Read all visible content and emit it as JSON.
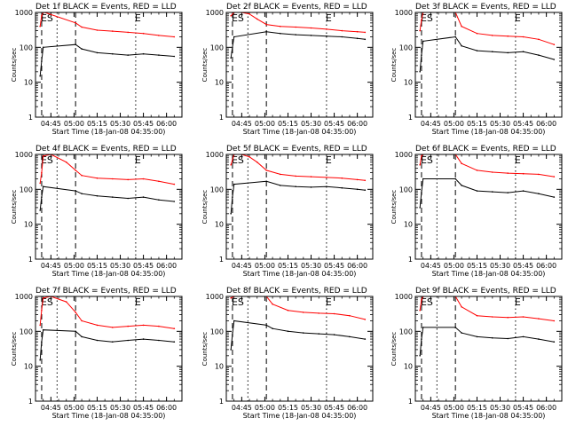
{
  "chart_data": [
    {
      "type": "line",
      "title": "Det 1f BLACK = Events, RED = LLD",
      "xlabel": "Start Time (18-Jan-08 04:35:00)",
      "ylabel": "Counts/sec",
      "yscale": "log",
      "ylim": [
        1,
        1000
      ],
      "y_ticks": [
        "1",
        "10",
        "100",
        "1000"
      ],
      "xlim": [
        "04:35",
        "06:10"
      ],
      "x_ticks": [
        "04:45",
        "05:00",
        "05:15",
        "05:30",
        "05:45",
        "06:00"
      ],
      "markers": [
        {
          "time": "04:39",
          "label": "ES",
          "style": "dashed"
        },
        {
          "time": "04:49",
          "label": "",
          "style": "dotted"
        },
        {
          "time": "05:01",
          "label": "",
          "style": "dashed"
        },
        {
          "time": "05:40",
          "label": "E",
          "style": "dotted"
        }
      ],
      "series": [
        {
          "name": "LLD",
          "color": "#ff0000",
          "x": [
            "04:38",
            "04:39",
            "04:40",
            "04:41",
            "05:01",
            "05:05",
            "05:15",
            "05:25",
            "05:35",
            "05:45",
            "05:55",
            "06:05"
          ],
          "y": [
            400,
            800,
            1000,
            1000,
            500,
            380,
            310,
            290,
            270,
            250,
            220,
            200
          ]
        },
        {
          "name": "Events",
          "color": "#000000",
          "x": [
            "04:38",
            "04:39",
            "04:40",
            "05:01",
            "05:05",
            "05:15",
            "05:25",
            "05:35",
            "05:45",
            "05:55",
            "06:05"
          ],
          "y": [
            15,
            40,
            100,
            120,
            90,
            70,
            65,
            60,
            65,
            60,
            55
          ]
        }
      ]
    },
    {
      "type": "line",
      "title": "Det 2f BLACK = Events, RED = LLD",
      "xlabel": "Start Time (18-Jan-08 04:35:00)",
      "ylabel": "Counts/sec",
      "yscale": "log",
      "ylim": [
        1,
        1000
      ],
      "y_ticks": [
        "1",
        "10",
        "100",
        "1000"
      ],
      "xlim": [
        "04:35",
        "06:10"
      ],
      "x_ticks": [
        "04:45",
        "05:00",
        "05:15",
        "05:30",
        "05:45",
        "06:00"
      ],
      "markers": [
        {
          "time": "04:39",
          "label": "ES",
          "style": "dashed"
        },
        {
          "time": "04:49",
          "label": "",
          "style": "dotted"
        },
        {
          "time": "05:01",
          "label": "",
          "style": "dashed"
        },
        {
          "time": "05:40",
          "label": "E",
          "style": "dotted"
        }
      ],
      "series": [
        {
          "name": "LLD",
          "color": "#ff0000",
          "x": [
            "04:38",
            "04:40",
            "04:45",
            "04:50",
            "04:55",
            "05:01",
            "05:10",
            "05:20",
            "05:30",
            "05:40",
            "05:50",
            "06:00",
            "06:05"
          ],
          "y": [
            800,
            1000,
            1000,
            900,
            650,
            450,
            400,
            380,
            360,
            330,
            300,
            280,
            270
          ]
        },
        {
          "name": "Events",
          "color": "#000000",
          "x": [
            "04:38",
            "04:39",
            "04:40",
            "05:01",
            "05:10",
            "05:20",
            "05:30",
            "05:40",
            "05:50",
            "06:00",
            "06:05"
          ],
          "y": [
            50,
            100,
            200,
            280,
            250,
            230,
            220,
            210,
            200,
            180,
            170
          ]
        }
      ]
    },
    {
      "type": "line",
      "title": "Det 3f BLACK = Events, RED = LLD",
      "xlabel": "Start Time (18-Jan-08 04:35:00)",
      "ylabel": "Counts/sec",
      "yscale": "log",
      "ylim": [
        1,
        1000
      ],
      "y_ticks": [
        "1",
        "10",
        "100",
        "1000"
      ],
      "xlim": [
        "04:35",
        "06:10"
      ],
      "x_ticks": [
        "04:45",
        "05:00",
        "05:15",
        "05:30",
        "05:45",
        "06:00"
      ],
      "markers": [
        {
          "time": "04:39",
          "label": "ES",
          "style": "dashed"
        },
        {
          "time": "04:49",
          "label": "",
          "style": "dotted"
        },
        {
          "time": "05:01",
          "label": "",
          "style": "dashed"
        },
        {
          "time": "05:40",
          "label": "E",
          "style": "dotted"
        }
      ],
      "series": [
        {
          "name": "LLD",
          "color": "#ff0000",
          "x": [
            "04:38",
            "04:39",
            "04:40",
            "05:01",
            "05:05",
            "05:15",
            "05:25",
            "05:35",
            "05:45",
            "05:55",
            "06:05"
          ],
          "y": [
            300,
            600,
            1000,
            1000,
            400,
            250,
            220,
            210,
            200,
            170,
            120
          ]
        },
        {
          "name": "Events",
          "color": "#000000",
          "x": [
            "04:38",
            "04:39",
            "04:40",
            "05:01",
            "05:05",
            "05:15",
            "05:25",
            "05:35",
            "05:45",
            "05:55",
            "06:05"
          ],
          "y": [
            20,
            60,
            150,
            200,
            110,
            80,
            75,
            70,
            75,
            60,
            45
          ]
        }
      ]
    },
    {
      "type": "line",
      "title": "Det 4f BLACK = Events, RED = LLD",
      "xlabel": "Start Time (18-Jan-08 04:35:00)",
      "ylabel": "Counts/sec",
      "yscale": "log",
      "ylim": [
        1,
        1000
      ],
      "y_ticks": [
        "1",
        "10",
        "100",
        "1000"
      ],
      "xlim": [
        "04:35",
        "06:10"
      ],
      "x_ticks": [
        "04:45",
        "05:00",
        "05:15",
        "05:30",
        "05:45",
        "06:00"
      ],
      "markers": [
        {
          "time": "04:39",
          "label": "ES",
          "style": "dashed"
        },
        {
          "time": "04:49",
          "label": "",
          "style": "dotted"
        },
        {
          "time": "05:01",
          "label": "",
          "style": "dashed"
        },
        {
          "time": "05:40",
          "label": "E",
          "style": "dotted"
        }
      ],
      "series": [
        {
          "name": "LLD",
          "color": "#ff0000",
          "x": [
            "04:38",
            "04:39",
            "04:40",
            "04:45",
            "04:55",
            "05:01",
            "05:05",
            "05:15",
            "05:25",
            "05:35",
            "05:45",
            "05:55",
            "06:05"
          ],
          "y": [
            150,
            300,
            900,
            1000,
            600,
            350,
            250,
            210,
            200,
            190,
            200,
            170,
            140
          ]
        },
        {
          "name": "Events",
          "color": "#000000",
          "x": [
            "04:38",
            "04:39",
            "04:40",
            "05:01",
            "05:05",
            "05:15",
            "05:25",
            "05:35",
            "05:45",
            "05:55",
            "06:05"
          ],
          "y": [
            25,
            60,
            120,
            90,
            75,
            65,
            60,
            55,
            60,
            50,
            45
          ]
        }
      ]
    },
    {
      "type": "line",
      "title": "Det 5f BLACK = Events, RED = LLD",
      "xlabel": "Start Time (18-Jan-08 04:35:00)",
      "ylabel": "Counts/sec",
      "yscale": "log",
      "ylim": [
        1,
        1000
      ],
      "y_ticks": [
        "1",
        "10",
        "100",
        "1000"
      ],
      "xlim": [
        "04:35",
        "06:10"
      ],
      "x_ticks": [
        "04:45",
        "05:00",
        "05:15",
        "05:30",
        "05:45",
        "06:00"
      ],
      "markers": [
        {
          "time": "04:39",
          "label": "ES",
          "style": "dashed"
        },
        {
          "time": "04:49",
          "label": "",
          "style": "dotted"
        },
        {
          "time": "05:01",
          "label": "",
          "style": "dashed"
        },
        {
          "time": "05:40",
          "label": "E",
          "style": "dotted"
        }
      ],
      "series": [
        {
          "name": "LLD",
          "color": "#ff0000",
          "x": [
            "04:38",
            "04:40",
            "04:45",
            "04:50",
            "04:55",
            "05:01",
            "05:10",
            "05:20",
            "05:30",
            "05:40",
            "05:50",
            "06:00",
            "06:05"
          ],
          "y": [
            500,
            1000,
            1000,
            850,
            600,
            350,
            270,
            240,
            230,
            220,
            210,
            190,
            180
          ]
        },
        {
          "name": "Events",
          "color": "#000000",
          "x": [
            "04:38",
            "04:39",
            "04:40",
            "05:01",
            "05:10",
            "05:20",
            "05:30",
            "05:40",
            "05:50",
            "06:00",
            "06:05"
          ],
          "y": [
            20,
            60,
            140,
            170,
            130,
            120,
            115,
            120,
            110,
            100,
            95
          ]
        }
      ]
    },
    {
      "type": "line",
      "title": "Det 6f BLACK = Events, RED = LLD",
      "xlabel": "Start Time (18-Jan-08 04:35:00)",
      "ylabel": "Counts/sec",
      "yscale": "log",
      "ylim": [
        1,
        1000
      ],
      "y_ticks": [
        "1",
        "10",
        "100",
        "1000"
      ],
      "xlim": [
        "04:35",
        "06:10"
      ],
      "x_ticks": [
        "04:45",
        "05:00",
        "05:15",
        "05:30",
        "05:45",
        "06:00"
      ],
      "markers": [
        {
          "time": "04:39",
          "label": "ES",
          "style": "dashed"
        },
        {
          "time": "04:49",
          "label": "",
          "style": "dotted"
        },
        {
          "time": "05:01",
          "label": "",
          "style": "dashed"
        },
        {
          "time": "05:40",
          "label": "E",
          "style": "dotted"
        }
      ],
      "series": [
        {
          "name": "LLD",
          "color": "#ff0000",
          "x": [
            "04:38",
            "04:39",
            "04:40",
            "05:01",
            "05:05",
            "05:15",
            "05:25",
            "05:35",
            "05:45",
            "05:55",
            "06:05"
          ],
          "y": [
            500,
            900,
            1000,
            1000,
            550,
            350,
            310,
            290,
            280,
            270,
            230
          ]
        },
        {
          "name": "Events",
          "color": "#000000",
          "x": [
            "04:38",
            "04:39",
            "04:40",
            "05:01",
            "05:05",
            "05:15",
            "05:25",
            "05:35",
            "05:45",
            "05:55",
            "06:05"
          ],
          "y": [
            30,
            80,
            200,
            200,
            130,
            90,
            85,
            80,
            90,
            75,
            60
          ]
        }
      ]
    },
    {
      "type": "line",
      "title": "Det 7f BLACK = Events, RED = LLD",
      "xlabel": "Start Time (18-Jan-08 04:35:00)",
      "ylabel": "Counts/sec",
      "yscale": "log",
      "ylim": [
        1,
        1000
      ],
      "y_ticks": [
        "1",
        "10",
        "100",
        "1000"
      ],
      "xlim": [
        "04:35",
        "06:10"
      ],
      "x_ticks": [
        "04:45",
        "05:00",
        "05:15",
        "05:30",
        "05:45",
        "06:00"
      ],
      "markers": [
        {
          "time": "04:39",
          "label": "ES",
          "style": "dashed"
        },
        {
          "time": "04:49",
          "label": "",
          "style": "dotted"
        },
        {
          "time": "05:01",
          "label": "",
          "style": "dashed"
        },
        {
          "time": "05:40",
          "label": "E",
          "style": "dotted"
        }
      ],
      "series": [
        {
          "name": "LLD",
          "color": "#ff0000",
          "x": [
            "04:38",
            "04:39",
            "04:40",
            "04:45",
            "04:55",
            "05:01",
            "05:05",
            "05:15",
            "05:25",
            "05:35",
            "05:45",
            "05:55",
            "06:05"
          ],
          "y": [
            150,
            400,
            900,
            1000,
            700,
            350,
            200,
            150,
            130,
            140,
            150,
            140,
            120
          ]
        },
        {
          "name": "Events",
          "color": "#000000",
          "x": [
            "04:38",
            "04:39",
            "04:40",
            "05:01",
            "05:05",
            "05:15",
            "05:25",
            "05:35",
            "05:45",
            "05:55",
            "06:05"
          ],
          "y": [
            15,
            50,
            110,
            100,
            70,
            55,
            50,
            55,
            60,
            55,
            50
          ]
        }
      ]
    },
    {
      "type": "line",
      "title": "Det 8f BLACK = Events, RED = LLD",
      "xlabel": "Start Time (18-Jan-08 04:35:00)",
      "ylabel": "Counts/sec",
      "yscale": "log",
      "ylim": [
        1,
        1000
      ],
      "y_ticks": [
        "1",
        "10",
        "100",
        "1000"
      ],
      "xlim": [
        "04:35",
        "06:10"
      ],
      "x_ticks": [
        "04:45",
        "05:00",
        "05:15",
        "05:30",
        "05:45",
        "06:00"
      ],
      "markers": [
        {
          "time": "04:39",
          "label": "ES",
          "style": "dashed"
        },
        {
          "time": "04:49",
          "label": "",
          "style": "dotted"
        },
        {
          "time": "05:01",
          "label": "",
          "style": "dashed"
        },
        {
          "time": "05:40",
          "label": "E",
          "style": "dotted"
        }
      ],
      "series": [
        {
          "name": "LLD",
          "color": "#ff0000",
          "x": [
            "04:38",
            "04:40",
            "05:01",
            "05:05",
            "05:15",
            "05:25",
            "05:35",
            "05:45",
            "05:55",
            "06:05"
          ],
          "y": [
            900,
            1000,
            1000,
            600,
            400,
            350,
            330,
            320,
            280,
            220
          ]
        },
        {
          "name": "Events",
          "color": "#000000",
          "x": [
            "04:38",
            "04:39",
            "04:40",
            "05:01",
            "05:05",
            "05:15",
            "05:25",
            "05:35",
            "05:45",
            "05:55",
            "06:05"
          ],
          "y": [
            30,
            80,
            200,
            150,
            120,
            100,
            90,
            85,
            80,
            70,
            60
          ]
        }
      ]
    },
    {
      "type": "line",
      "title": "Det 9f BLACK = Events, RED = LLD",
      "xlabel": "Start Time (18-Jan-08 04:35:00)",
      "ylabel": "Counts/sec",
      "yscale": "log",
      "ylim": [
        1,
        1000
      ],
      "y_ticks": [
        "1",
        "10",
        "100",
        "1000"
      ],
      "xlim": [
        "04:35",
        "06:10"
      ],
      "x_ticks": [
        "04:45",
        "05:00",
        "05:15",
        "05:30",
        "05:45",
        "06:00"
      ],
      "markers": [
        {
          "time": "04:39",
          "label": "ES",
          "style": "dashed"
        },
        {
          "time": "04:49",
          "label": "",
          "style": "dotted"
        },
        {
          "time": "05:01",
          "label": "",
          "style": "dashed"
        },
        {
          "time": "05:40",
          "label": "E",
          "style": "dotted"
        }
      ],
      "series": [
        {
          "name": "LLD",
          "color": "#ff0000",
          "x": [
            "04:38",
            "04:39",
            "04:40",
            "05:01",
            "05:05",
            "05:15",
            "05:25",
            "05:35",
            "05:45",
            "05:55",
            "06:05"
          ],
          "y": [
            400,
            800,
            1000,
            1000,
            500,
            280,
            260,
            250,
            260,
            230,
            200
          ]
        },
        {
          "name": "Events",
          "color": "#000000",
          "x": [
            "04:38",
            "04:39",
            "04:40",
            "05:01",
            "05:05",
            "05:15",
            "05:25",
            "05:35",
            "05:45",
            "05:55",
            "06:05"
          ],
          "y": [
            20,
            60,
            130,
            130,
            90,
            70,
            65,
            62,
            70,
            60,
            50
          ]
        }
      ]
    }
  ]
}
